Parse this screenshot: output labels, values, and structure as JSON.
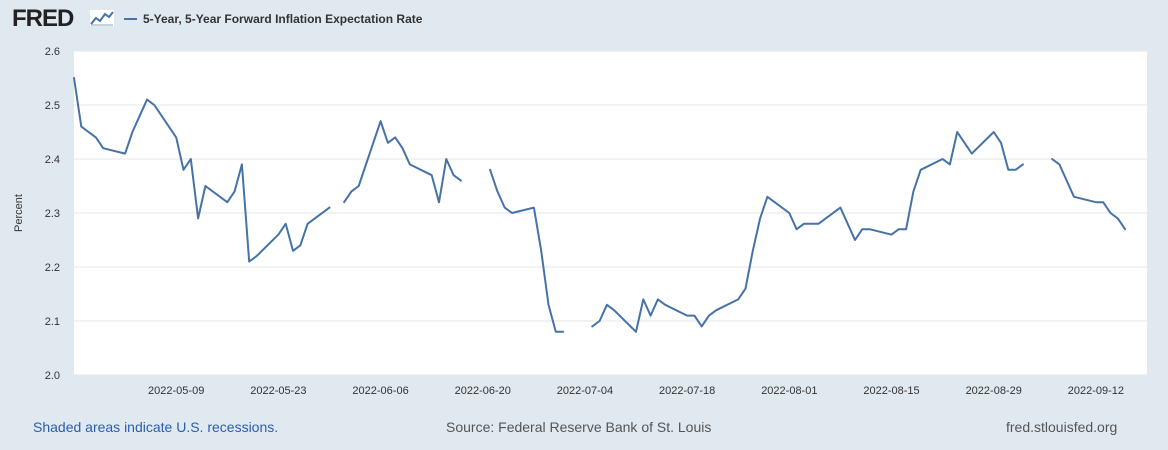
{
  "header": {
    "logo_text": "FRED",
    "legend_label": "5-Year, 5-Year Forward Inflation Expectation Rate"
  },
  "footer": {
    "recession_note": "Shaded areas indicate U.S. recessions.",
    "source": "Source: Federal Reserve Bank of St. Louis",
    "site": "fred.stlouisfed.org"
  },
  "colors": {
    "series": "#4572a7",
    "plot_background": "#ffffff",
    "page_background": "#e1e9f0",
    "grid": "#e6e6e6"
  },
  "chart_data": {
    "type": "line",
    "title": "5-Year, 5-Year Forward Inflation Expectation Rate",
    "xlabel": "",
    "ylabel": "Percent",
    "ylim": [
      2.0,
      2.6
    ],
    "yticks": [
      2.0,
      2.1,
      2.2,
      2.3,
      2.4,
      2.5,
      2.6
    ],
    "xlim": [
      "2022-04-25",
      "2022-09-19"
    ],
    "xticks": [
      "2022-05-09",
      "2022-05-23",
      "2022-06-06",
      "2022-06-20",
      "2022-07-04",
      "2022-07-18",
      "2022-08-01",
      "2022-08-15",
      "2022-08-29",
      "2022-09-12"
    ],
    "grid": true,
    "series": [
      {
        "name": "5-Year, 5-Year Forward Inflation Expectation Rate",
        "points": [
          [
            "2022-04-25",
            2.55
          ],
          [
            "2022-04-26",
            2.46
          ],
          [
            "2022-04-27",
            2.45
          ],
          [
            "2022-04-28",
            2.44
          ],
          [
            "2022-04-29",
            2.42
          ],
          [
            "2022-05-02",
            2.41
          ],
          [
            "2022-05-03",
            2.45
          ],
          [
            "2022-05-04",
            2.48
          ],
          [
            "2022-05-05",
            2.51
          ],
          [
            "2022-05-06",
            2.5
          ],
          [
            "2022-05-09",
            2.44
          ],
          [
            "2022-05-10",
            2.38
          ],
          [
            "2022-05-11",
            2.4
          ],
          [
            "2022-05-12",
            2.29
          ],
          [
            "2022-05-13",
            2.35
          ],
          [
            "2022-05-16",
            2.32
          ],
          [
            "2022-05-17",
            2.34
          ],
          [
            "2022-05-18",
            2.39
          ],
          [
            "2022-05-19",
            2.21
          ],
          [
            "2022-05-20",
            2.22
          ],
          [
            "2022-05-23",
            2.26
          ],
          [
            "2022-05-24",
            2.28
          ],
          [
            "2022-05-25",
            2.23
          ],
          [
            "2022-05-26",
            2.24
          ],
          [
            "2022-05-27",
            2.28
          ],
          [
            "2022-05-30",
            2.31
          ],
          [
            "2022-05-31",
            null
          ],
          [
            "2022-06-01",
            2.32
          ],
          [
            "2022-06-02",
            2.34
          ],
          [
            "2022-06-03",
            2.35
          ],
          [
            "2022-06-06",
            2.47
          ],
          [
            "2022-06-07",
            2.43
          ],
          [
            "2022-06-08",
            2.44
          ],
          [
            "2022-06-09",
            2.42
          ],
          [
            "2022-06-10",
            2.39
          ],
          [
            "2022-06-13",
            2.37
          ],
          [
            "2022-06-14",
            2.32
          ],
          [
            "2022-06-15",
            2.4
          ],
          [
            "2022-06-16",
            2.37
          ],
          [
            "2022-06-17",
            2.36
          ],
          [
            "2022-06-20",
            null
          ],
          [
            "2022-06-21",
            2.38
          ],
          [
            "2022-06-22",
            2.34
          ],
          [
            "2022-06-23",
            2.31
          ],
          [
            "2022-06-24",
            2.3
          ],
          [
            "2022-06-27",
            2.31
          ],
          [
            "2022-06-28",
            2.23
          ],
          [
            "2022-06-29",
            2.13
          ],
          [
            "2022-06-30",
            2.08
          ],
          [
            "2022-07-01",
            2.08
          ],
          [
            "2022-07-04",
            null
          ],
          [
            "2022-07-05",
            2.09
          ],
          [
            "2022-07-06",
            2.1
          ],
          [
            "2022-07-07",
            2.13
          ],
          [
            "2022-07-08",
            2.12
          ],
          [
            "2022-07-11",
            2.08
          ],
          [
            "2022-07-12",
            2.14
          ],
          [
            "2022-07-13",
            2.11
          ],
          [
            "2022-07-14",
            2.14
          ],
          [
            "2022-07-15",
            2.13
          ],
          [
            "2022-07-18",
            2.11
          ],
          [
            "2022-07-19",
            2.11
          ],
          [
            "2022-07-20",
            2.09
          ],
          [
            "2022-07-21",
            2.11
          ],
          [
            "2022-07-22",
            2.12
          ],
          [
            "2022-07-25",
            2.14
          ],
          [
            "2022-07-26",
            2.16
          ],
          [
            "2022-07-27",
            2.23
          ],
          [
            "2022-07-28",
            2.29
          ],
          [
            "2022-07-29",
            2.33
          ],
          [
            "2022-08-01",
            2.3
          ],
          [
            "2022-08-02",
            2.27
          ],
          [
            "2022-08-03",
            2.28
          ],
          [
            "2022-08-04",
            2.28
          ],
          [
            "2022-08-05",
            2.28
          ],
          [
            "2022-08-08",
            2.31
          ],
          [
            "2022-08-09",
            2.28
          ],
          [
            "2022-08-10",
            2.25
          ],
          [
            "2022-08-11",
            2.27
          ],
          [
            "2022-08-12",
            2.27
          ],
          [
            "2022-08-15",
            2.26
          ],
          [
            "2022-08-16",
            2.27
          ],
          [
            "2022-08-17",
            2.27
          ],
          [
            "2022-08-18",
            2.34
          ],
          [
            "2022-08-19",
            2.38
          ],
          [
            "2022-08-22",
            2.4
          ],
          [
            "2022-08-23",
            2.39
          ],
          [
            "2022-08-24",
            2.45
          ],
          [
            "2022-08-25",
            2.43
          ],
          [
            "2022-08-26",
            2.41
          ],
          [
            "2022-08-29",
            2.45
          ],
          [
            "2022-08-30",
            2.43
          ],
          [
            "2022-08-31",
            2.38
          ],
          [
            "2022-09-01",
            2.38
          ],
          [
            "2022-09-02",
            2.39
          ],
          [
            "2022-09-05",
            null
          ],
          [
            "2022-09-06",
            2.4
          ],
          [
            "2022-09-07",
            2.39
          ],
          [
            "2022-09-08",
            2.36
          ],
          [
            "2022-09-09",
            2.33
          ],
          [
            "2022-09-12",
            2.32
          ],
          [
            "2022-09-13",
            2.32
          ],
          [
            "2022-09-14",
            2.3
          ],
          [
            "2022-09-15",
            2.29
          ],
          [
            "2022-09-16",
            2.27
          ]
        ]
      }
    ]
  }
}
